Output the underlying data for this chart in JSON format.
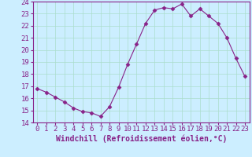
{
  "x": [
    0,
    1,
    2,
    3,
    4,
    5,
    6,
    7,
    8,
    9,
    10,
    11,
    12,
    13,
    14,
    15,
    16,
    17,
    18,
    19,
    20,
    21,
    22,
    23
  ],
  "y": [
    16.8,
    16.5,
    16.1,
    15.7,
    15.2,
    14.9,
    14.8,
    14.5,
    15.3,
    16.9,
    18.8,
    20.5,
    22.2,
    23.3,
    23.5,
    23.4,
    23.8,
    22.8,
    23.4,
    22.8,
    22.2,
    21.0,
    19.3,
    17.8
  ],
  "line_color": "#882288",
  "marker": "D",
  "marker_size": 2.5,
  "bg_color": "#cceeff",
  "grid_color": "#aaddcc",
  "xlabel": "Windchill (Refroidissement éolien,°C)",
  "xlabel_color": "#882288",
  "tick_color": "#882288",
  "ylim": [
    14,
    24
  ],
  "xlim": [
    -0.5,
    23.5
  ],
  "yticks": [
    14,
    15,
    16,
    17,
    18,
    19,
    20,
    21,
    22,
    23,
    24
  ],
  "xticks": [
    0,
    1,
    2,
    3,
    4,
    5,
    6,
    7,
    8,
    9,
    10,
    11,
    12,
    13,
    14,
    15,
    16,
    17,
    18,
    19,
    20,
    21,
    22,
    23
  ],
  "spine_color": "#882288",
  "font_size": 6.5,
  "xlabel_fontsize": 7
}
